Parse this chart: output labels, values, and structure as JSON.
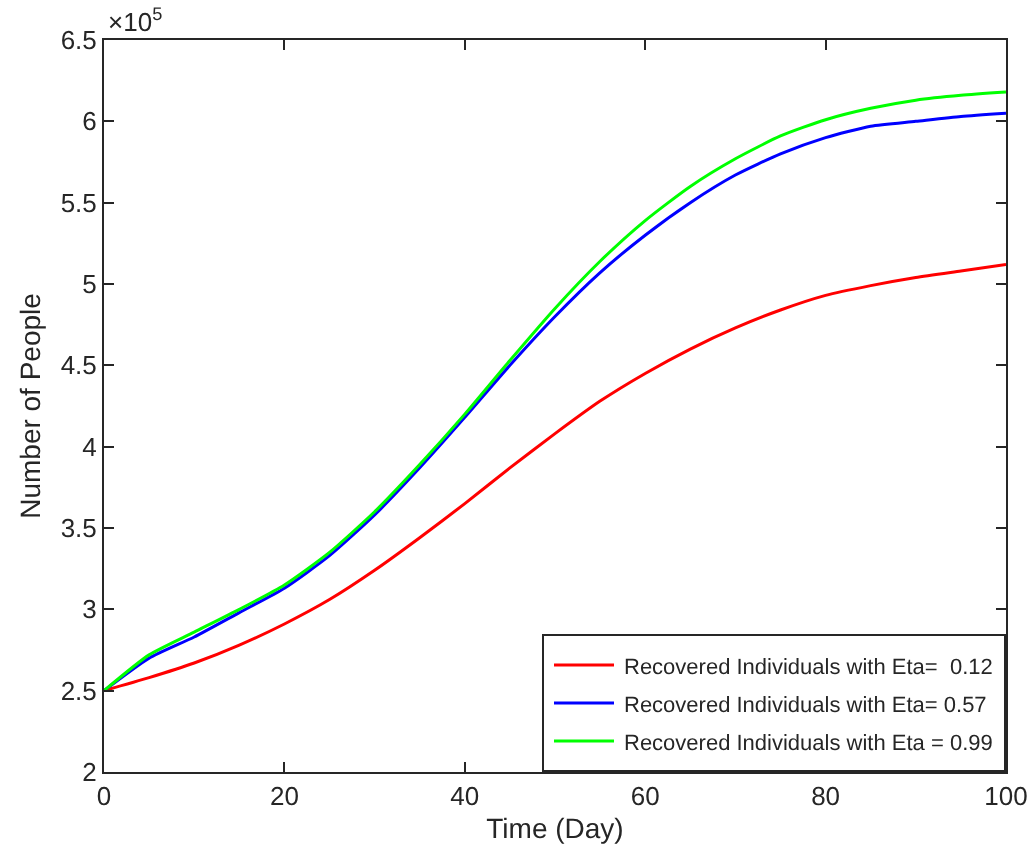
{
  "chart_data": {
    "type": "line",
    "xlabel": "Time (Day)",
    "ylabel": "Number of People",
    "annotations": [
      "×10$^{5}$"
    ],
    "x": [
      0,
      5,
      10,
      15,
      20,
      25,
      30,
      35,
      40,
      45,
      50,
      55,
      60,
      65,
      70,
      75,
      80,
      85,
      90,
      95,
      100
    ],
    "series": [
      {
        "name": "Recovered Individuals with Eta=  0.12",
        "color": "#ff0000",
        "values": [
          2.5,
          2.58,
          2.67,
          2.78,
          2.91,
          3.06,
          3.24,
          3.44,
          3.65,
          3.87,
          4.08,
          4.28,
          4.45,
          4.6,
          4.73,
          4.84,
          4.93,
          4.99,
          5.04,
          5.08,
          5.12
        ]
      },
      {
        "name": "Recovered Individuals with Eta= 0.57",
        "color": "#0000ff",
        "values": [
          2.5,
          2.7,
          2.83,
          2.98,
          3.13,
          3.33,
          3.58,
          3.87,
          4.18,
          4.5,
          4.8,
          5.07,
          5.3,
          5.5,
          5.67,
          5.8,
          5.9,
          5.97,
          6.0,
          6.03,
          6.05
        ]
      },
      {
        "name": "Recovered Individuals with Eta = 0.99",
        "color": "#00ff00",
        "values": [
          2.5,
          2.72,
          2.86,
          3.0,
          3.15,
          3.35,
          3.6,
          3.89,
          4.2,
          4.53,
          4.85,
          5.14,
          5.39,
          5.6,
          5.77,
          5.91,
          6.01,
          6.08,
          6.13,
          6.16,
          6.18
        ]
      }
    ],
    "xlim": [
      0,
      100
    ],
    "xticks": [
      0,
      20,
      40,
      60,
      80,
      100
    ],
    "ylim": [
      2,
      6.5
    ],
    "yticks": [
      2,
      2.5,
      3,
      3.5,
      4,
      4.5,
      5,
      5.5,
      6,
      6.5
    ],
    "grid": false,
    "legend": "bottom right",
    "marker": "none",
    "line_style": "solid"
  }
}
